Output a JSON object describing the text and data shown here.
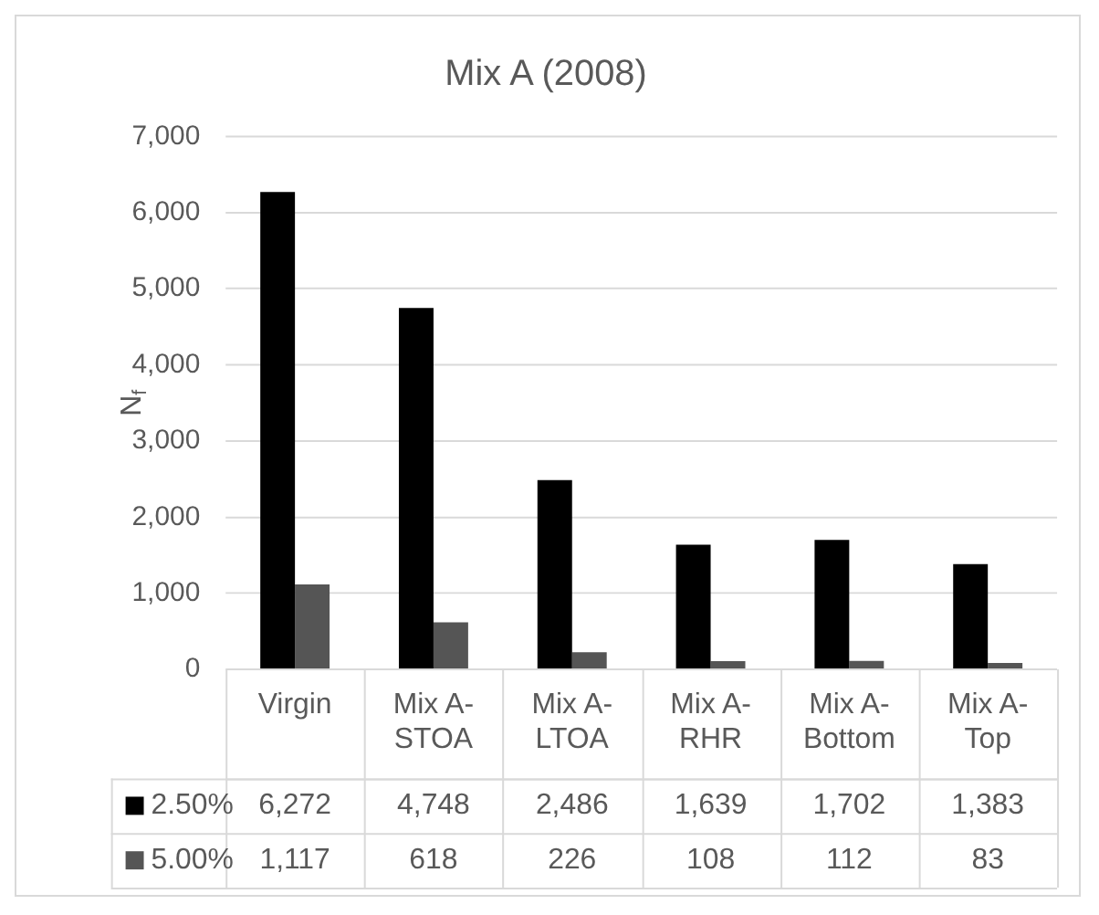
{
  "chart_data": {
    "type": "bar",
    "title": "Mix A (2008)",
    "ylabel": "N$_{f}$",
    "categories": [
      "Virgin",
      "Mix A-STOA",
      "Mix A-LTOA",
      "Mix A-RHR",
      "Mix A-Bottom",
      "Mix A-Top"
    ],
    "series": [
      {
        "name": "2.50%",
        "color": "#000000",
        "values": [
          6272,
          4748,
          2486,
          1639,
          1702,
          1383
        ],
        "value_labels": [
          "6,272",
          "4,748",
          "2,486",
          "1,639",
          "1,702",
          "1,383"
        ]
      },
      {
        "name": "5.00%",
        "color": "#555555",
        "values": [
          1117,
          618,
          226,
          108,
          112,
          83
        ],
        "value_labels": [
          "1,117",
          "618",
          "226",
          "108",
          "112",
          "83"
        ]
      }
    ],
    "ylim": [
      0,
      7000
    ],
    "yticks": [
      0,
      {
        "value": 1000,
        "label": "1,000"
      },
      {
        "value": 2000,
        "label": "2,000"
      },
      {
        "value": 3000,
        "label": "3,000"
      },
      {
        "value": 4000,
        "label": "4,000"
      },
      {
        "value": 5000,
        "label": "5,000"
      },
      {
        "value": 6000,
        "label": "6,000"
      },
      {
        "value": 7000,
        "label": "7,000"
      }
    ],
    "grid": "y",
    "legend": "bottom"
  }
}
